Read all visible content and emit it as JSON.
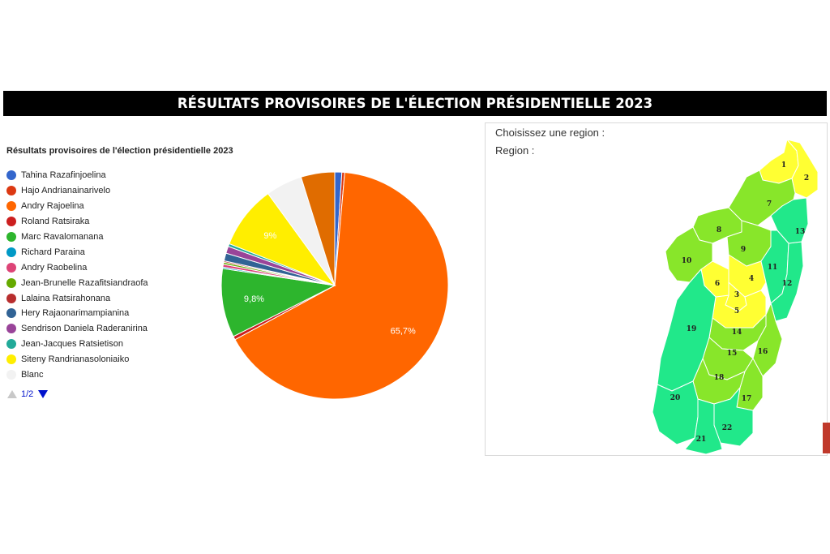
{
  "banner": {
    "title": "RÉSULTATS PROVISOIRES DE L'ÉLECTION PRÉSIDENTIELLE 2023"
  },
  "chart_data": {
    "type": "pie",
    "title": "Résultats provisoires de l'élection présidentielle 2023",
    "slices": [
      {
        "label": "Tahina Razafinjoelina",
        "value": 1.0,
        "color": "#3366cc",
        "data_label": ""
      },
      {
        "label": "Hajo Andrianainarivelo",
        "value": 0.4,
        "color": "#dc3912",
        "data_label": ""
      },
      {
        "label": "Andry Rajoelina",
        "value": 65.7,
        "color": "#ff6600",
        "data_label": "65,7%"
      },
      {
        "label": "Roland Ratsiraka",
        "value": 0.5,
        "color": "#cc1f1f",
        "data_label": ""
      },
      {
        "label": "Marc Ravalomanana",
        "value": 9.8,
        "color": "#2db52d",
        "data_label": "9,8%"
      },
      {
        "label": "Richard Paraina",
        "value": 0.2,
        "color": "#0099c6",
        "data_label": ""
      },
      {
        "label": "Andry Raobelina",
        "value": 0.4,
        "color": "#dd4477",
        "data_label": ""
      },
      {
        "label": "Jean-Brunelle Razafitsiandraofa",
        "value": 0.3,
        "color": "#66aa00",
        "data_label": ""
      },
      {
        "label": "Lalaina Ratsirahonana",
        "value": 0.2,
        "color": "#b82e2e",
        "data_label": ""
      },
      {
        "label": "Hery Rajaonarimampianina",
        "value": 1.1,
        "color": "#316395",
        "data_label": ""
      },
      {
        "label": "Sendrison Daniela Raderanirina",
        "value": 1.0,
        "color": "#994499",
        "data_label": ""
      },
      {
        "label": "Jean-Jacques Ratsietison",
        "value": 0.4,
        "color": "#22aa99",
        "data_label": ""
      },
      {
        "label": "Siteny Randrianasoloniaiko",
        "value": 9.0,
        "color": "#ffee00",
        "data_label": "9%"
      },
      {
        "label": "Blanc",
        "value": 5.2,
        "color": "#f2f2f2",
        "data_label": ""
      },
      {
        "label": "",
        "value": 4.8,
        "color": "#e06c00",
        "data_label": ""
      }
    ],
    "legend_position": "left"
  },
  "legend_pager": {
    "page": "1/2"
  },
  "map": {
    "choose_label": "Choisissez une region :",
    "region_label": "Region :",
    "colors": {
      "yellow": "#ffff33",
      "light_green": "#88e62a",
      "green": "#21e88a"
    },
    "regions": [
      {
        "id": "1",
        "tier": "yellow"
      },
      {
        "id": "2",
        "tier": "yellow"
      },
      {
        "id": "3",
        "tier": "yellow"
      },
      {
        "id": "4",
        "tier": "yellow"
      },
      {
        "id": "5",
        "tier": "yellow"
      },
      {
        "id": "6",
        "tier": "yellow"
      },
      {
        "id": "7",
        "tier": "light_green"
      },
      {
        "id": "8",
        "tier": "light_green"
      },
      {
        "id": "9",
        "tier": "light_green"
      },
      {
        "id": "10",
        "tier": "light_green"
      },
      {
        "id": "11",
        "tier": "green"
      },
      {
        "id": "12",
        "tier": "green"
      },
      {
        "id": "13",
        "tier": "green"
      },
      {
        "id": "14",
        "tier": "light_green"
      },
      {
        "id": "15",
        "tier": "light_green"
      },
      {
        "id": "16",
        "tier": "light_green"
      },
      {
        "id": "17",
        "tier": "light_green"
      },
      {
        "id": "18",
        "tier": "light_green"
      },
      {
        "id": "19",
        "tier": "green"
      },
      {
        "id": "20",
        "tier": "green"
      },
      {
        "id": "21",
        "tier": "green"
      },
      {
        "id": "22",
        "tier": "green"
      }
    ]
  }
}
